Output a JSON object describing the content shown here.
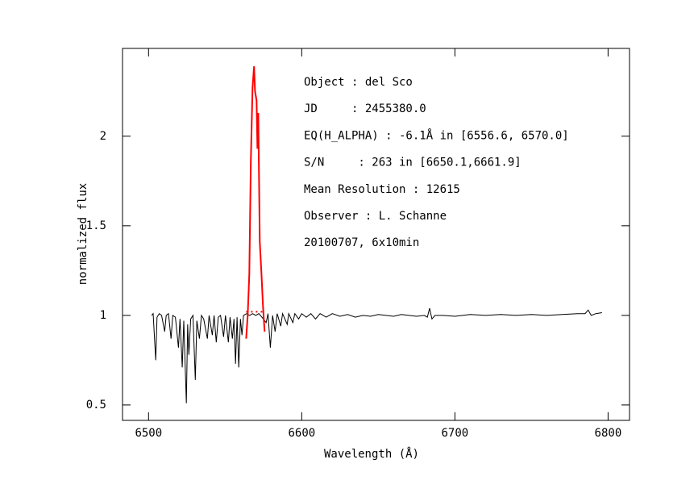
{
  "chart_data": {
    "type": "line",
    "xlabel": "Wavelength (Å)",
    "ylabel": "normalized flux",
    "annotations": [
      "Object : del Sco",
      "JD     : 2455380.0",
      "EQ(H_ALPHA) : -6.1Å in [6556.6, 6570.0]",
      "S/N     : 263 in [6650.1,6661.9]",
      "Mean Resolution : 12615",
      "Observer : L. Schanne",
      "20100707, 6x10min"
    ],
    "xlim": [
      6483,
      6814
    ],
    "ylim": [
      0.414,
      2.49
    ],
    "xticks": [
      6500,
      6600,
      6700,
      6800
    ],
    "yticks": [
      0.5,
      1,
      1.5,
      2
    ],
    "series": [
      {
        "color": "#000000",
        "dashed": false,
        "x": [
          6502,
          6503,
          6504.7,
          6505.5,
          6507,
          6508.5,
          6510.5,
          6511.5,
          6513,
          6514.7,
          6515.8,
          6517.5,
          6519.5,
          6520.5,
          6522,
          6523,
          6524.7,
          6525.5,
          6526.3,
          6527.5,
          6529,
          6530.5,
          6531.5,
          6533.2,
          6534.5,
          6536,
          6538.4,
          6539.5,
          6541.6,
          6542.8,
          6544.2,
          6545.5,
          6547,
          6549,
          6550.2,
          6552.1,
          6553.2,
          6554.7,
          6555.8,
          6556.8,
          6557.8,
          6558.9,
          6560,
          6561,
          6562,
          6564,
          6566,
          6568,
          6570,
          6572,
          6574,
          6576.8,
          6578,
          6579.5,
          6581,
          6582.6,
          6584,
          6586.3,
          6587.5,
          6590.5,
          6591.5,
          6594.2,
          6595.5,
          6598,
          6600,
          6603,
          6606,
          6609,
          6612,
          6616,
          6620,
          6625,
          6630,
          6635,
          6640,
          6645,
          6650,
          6655,
          6660,
          6665,
          6670,
          6675,
          6680,
          6682,
          6683.5,
          6685,
          6687,
          6692,
          6700,
          6710,
          6720,
          6730,
          6740,
          6750,
          6760,
          6770,
          6780,
          6785,
          6787,
          6789,
          6792,
          6796
        ],
        "values": [
          1.0,
          1.01,
          0.75,
          0.99,
          1.01,
          1.0,
          0.91,
          1.0,
          1.01,
          0.87,
          1.0,
          0.99,
          0.82,
          0.98,
          0.71,
          0.97,
          0.51,
          0.95,
          0.78,
          0.98,
          1.0,
          0.64,
          0.97,
          0.87,
          1.0,
          0.98,
          0.87,
          1.0,
          0.89,
          1.0,
          0.85,
          0.99,
          1.0,
          0.88,
          1.0,
          0.85,
          0.99,
          0.87,
          0.98,
          0.73,
          0.99,
          0.71,
          0.98,
          0.89,
          1.0,
          1.01,
          1.0,
          1.01,
          1.0,
          1.01,
          0.99,
          0.96,
          1.01,
          0.82,
          1.0,
          0.91,
          1.01,
          0.94,
          1.01,
          0.95,
          1.01,
          0.96,
          1.01,
          0.98,
          1.01,
          0.99,
          1.01,
          0.98,
          1.01,
          0.99,
          1.01,
          0.995,
          1.005,
          0.99,
          1.0,
          0.995,
          1.005,
          1.0,
          0.995,
          1.005,
          1.0,
          0.995,
          1.0,
          0.99,
          1.04,
          0.98,
          1.0,
          1.0,
          0.995,
          1.005,
          1.0,
          1.005,
          1.0,
          1.005,
          1.0,
          1.005,
          1.01,
          1.01,
          1.03,
          1.0,
          1.01,
          1.015
        ]
      },
      {
        "color": "#ff0000",
        "dashed": false,
        "x": [
          6563.7,
          6564.7,
          6565.8,
          6566.8,
          6567.9,
          6568.9,
          6569.5,
          6570.5,
          6571.1,
          6571.6,
          6572.6,
          6573.7,
          6574.7,
          6575.8
        ],
        "values": [
          0.87,
          1.0,
          1.23,
          1.86,
          2.27,
          2.39,
          2.25,
          2.2,
          1.93,
          2.13,
          1.41,
          1.23,
          1.05,
          0.91
        ]
      },
      {
        "color": "#ff0000",
        "dashed": true,
        "x": [
          6563.7,
          6575.8
        ],
        "values": [
          1.02,
          1.02
        ]
      }
    ]
  }
}
